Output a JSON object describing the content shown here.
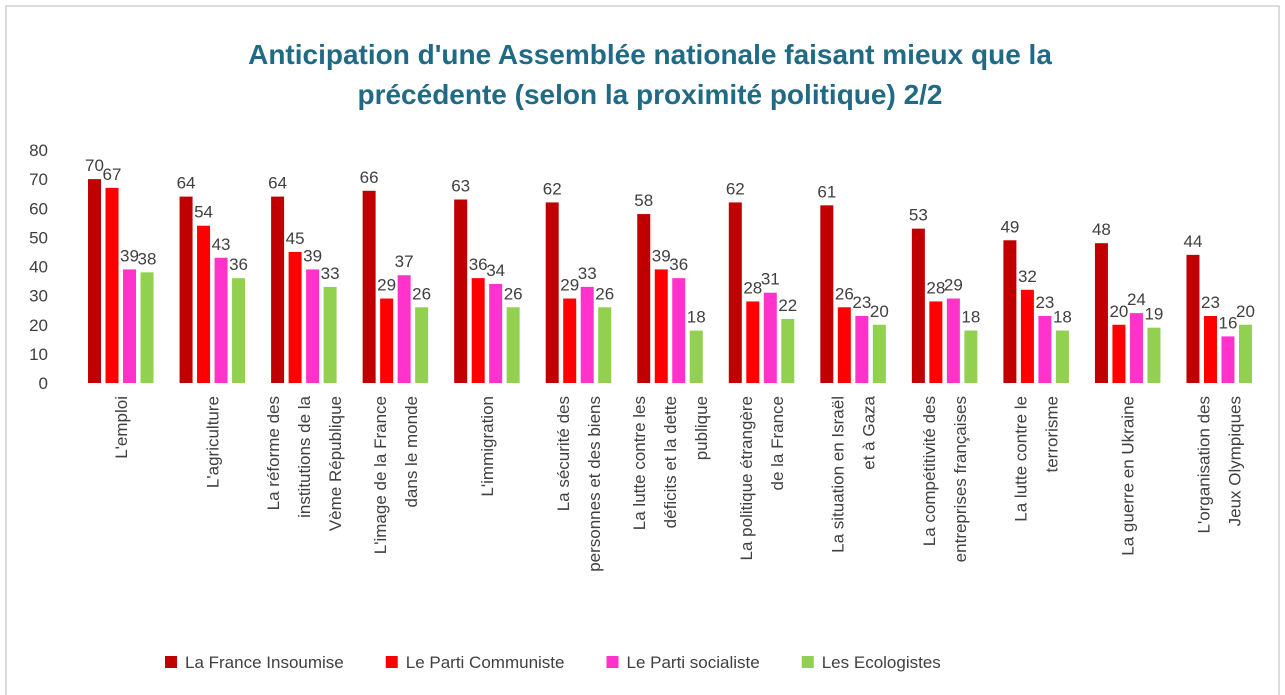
{
  "chart_data": {
    "type": "bar",
    "title": "Anticipation d'une Assemblée nationale faisant mieux que la précédente (selon la proximité politique) 2/2",
    "categories": [
      "L'emploi",
      "L'agriculture",
      "La réforme des institutions de la Vème République",
      "L'image de la France dans le monde",
      "L'immigration",
      "La sécurité des personnes et des biens",
      "La lutte contre les déficits et la dette publique",
      "La politique étrangère de la France",
      "La situation en Israël et à Gaza",
      "La compétitivité des entreprises françaises",
      "La lutte contre le terrorisme",
      "La guerre en Ukraine",
      "L'organisation des Jeux Olympiques"
    ],
    "series": [
      {
        "name": "La France Insoumise",
        "color": "#c00000",
        "values": [
          70,
          64,
          64,
          66,
          63,
          62,
          58,
          62,
          61,
          53,
          49,
          48,
          44
        ]
      },
      {
        "name": "Le Parti Communiste",
        "color": "#ff0000",
        "values": [
          67,
          54,
          45,
          29,
          36,
          29,
          39,
          28,
          26,
          28,
          32,
          20,
          23
        ]
      },
      {
        "name": "Le Parti socialiste",
        "color": "#ff33cc",
        "values": [
          39,
          43,
          39,
          37,
          34,
          33,
          36,
          31,
          23,
          29,
          23,
          24,
          16
        ]
      },
      {
        "name": "Les Ecologistes",
        "color": "#92d050",
        "values": [
          38,
          36,
          33,
          26,
          26,
          26,
          18,
          22,
          20,
          18,
          18,
          19,
          20
        ]
      }
    ],
    "ylim": [
      0,
      80
    ],
    "yticks": [
      0,
      10,
      20,
      30,
      40,
      50,
      60,
      70,
      80
    ],
    "grid": false,
    "legend": "bottom"
  }
}
